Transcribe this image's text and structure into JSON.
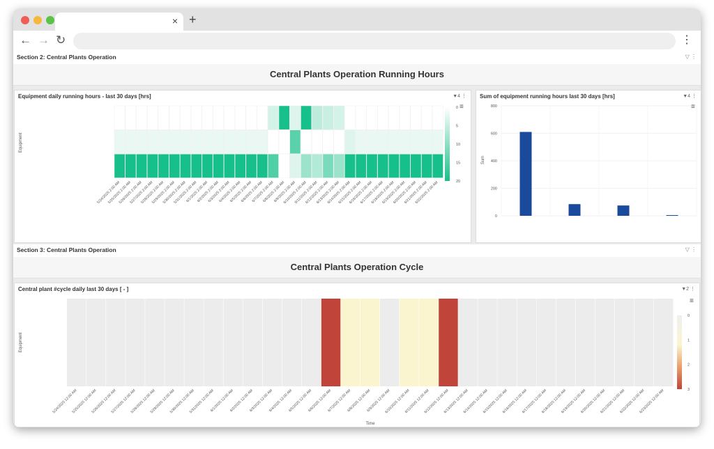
{
  "browser": {
    "tab_close": "×",
    "new_tab": "+",
    "back_icon": "←",
    "forward_icon": "→",
    "reload_icon": "↻",
    "menu_icon": "⋮"
  },
  "section2": {
    "title": "Section 2: Central Plants Operation",
    "banner": "Central Plants Operation Running Hours",
    "icons": "▽ ⋮"
  },
  "section3": {
    "title": "Section 3: Central Plants Operation",
    "banner": "Central Plants Operation Cycle",
    "icons": "▽ ⋮"
  },
  "panel_heatmap_hours": {
    "title": "Equipment daily running hours - last 30 days [hrs]",
    "filter_badge": "▼4 ⋮",
    "menu_icon": "≡",
    "ylabel": "Equipment"
  },
  "panel_bar_sum": {
    "title": "Sum of equipment running hours last 30 days [hrs]",
    "filter_badge": "▼4 ⋮",
    "menu_icon": "≡",
    "ylabel": "Sum"
  },
  "panel_cycle": {
    "title": "Central plant #cycle daily last 30 days [ - ]",
    "filter_badge": "▼2 ⋮",
    "menu_icon": "≡",
    "ylabel": "Equipment",
    "xlabel": "Time"
  },
  "colors": {
    "green_max": "#17c08a",
    "blue_bar": "#1a4a9c",
    "red_max": "#c0443a",
    "cream": "#fbf5cf",
    "gray_cell": "#ececec"
  },
  "chart_data": [
    {
      "type": "heatmap",
      "x": [
        "5/24/2025 2:00 AM",
        "5/25/2025 2:00 AM",
        "5/26/2025 2:00 AM",
        "5/27/2025 2:00 AM",
        "5/28/2025 2:00 AM",
        "5/29/2025 2:00 AM",
        "5/30/2025 2:00 AM",
        "5/31/2025 2:00 AM",
        "6/1/2025 2:00 AM",
        "6/2/2025 2:00 AM",
        "6/3/2025 2:00 AM",
        "6/4/2025 2:00 AM",
        "6/5/2025 2:00 AM",
        "6/6/2025 2:00 AM",
        "6/7/2025 2:00 AM",
        "6/8/2025 2:00 AM",
        "6/9/2025 2:00 AM",
        "6/10/2025 2:00 AM",
        "6/11/2025 2:00 AM",
        "6/12/2025 2:00 AM",
        "6/13/2025 2:00 AM",
        "6/14/2025 2:00 AM",
        "6/15/2025 2:00 AM",
        "6/16/2025 2:00 AM",
        "6/17/2025 2:00 AM",
        "6/18/2025 2:00 AM",
        "6/19/2025 2:00 AM",
        "6/20/2025 2:00 AM",
        "6/21/2025 2:00 AM",
        "6/22/2025 2:00 AM"
      ],
      "rows": 3,
      "values": [
        [
          0,
          0,
          0,
          0,
          0,
          0,
          0,
          0,
          0,
          0,
          0,
          0,
          0,
          0,
          3,
          20,
          2,
          20,
          5,
          4,
          3,
          0,
          0,
          0,
          0,
          0,
          0,
          0,
          0,
          0
        ],
        [
          1,
          1,
          1,
          1,
          1,
          1,
          1,
          1,
          1,
          1,
          1,
          1,
          1,
          1,
          0,
          0,
          14,
          0,
          0,
          0,
          0,
          2,
          1,
          1,
          1,
          1,
          1,
          1,
          1,
          1
        ],
        [
          20,
          20,
          20,
          20,
          20,
          20,
          20,
          20,
          20,
          20,
          20,
          20,
          20,
          20,
          15,
          0,
          2,
          8,
          6,
          11,
          8,
          20,
          20,
          20,
          20,
          20,
          20,
          20,
          20,
          20
        ]
      ],
      "colorbar": [
        0,
        5,
        10,
        15,
        20
      ],
      "ylabel": "Equipment"
    },
    {
      "type": "bar",
      "categories": [
        "",
        "",
        "",
        ""
      ],
      "values": [
        610,
        85,
        75,
        5
      ],
      "ylim": [
        0,
        800
      ],
      "yticks": [
        0,
        200,
        400,
        600,
        800
      ],
      "ylabel": "Sum"
    },
    {
      "type": "heatmap",
      "x": [
        "5/24/2025 12:00 AM",
        "5/25/2025 12:00 AM",
        "5/26/2025 12:00 AM",
        "5/27/2025 12:00 AM",
        "5/28/2025 12:00 AM",
        "5/29/2025 12:00 AM",
        "5/30/2025 12:00 AM",
        "5/31/2025 12:00 AM",
        "6/1/2025 12:00 AM",
        "6/2/2025 12:00 AM",
        "6/3/2025 12:00 AM",
        "6/4/2025 12:00 AM",
        "6/5/2025 12:00 AM",
        "6/6/2025 12:00 AM",
        "6/7/2025 12:00 AM",
        "6/8/2025 12:00 AM",
        "6/9/2025 12:00 AM",
        "6/10/2025 12:00 AM",
        "6/11/2025 12:00 AM",
        "6/12/2025 12:00 AM",
        "6/13/2025 12:00 AM",
        "6/14/2025 12:00 AM",
        "6/15/2025 12:00 AM",
        "6/16/2025 12:00 AM",
        "6/17/2025 12:00 AM",
        "6/18/2025 12:00 AM",
        "6/19/2025 12:00 AM",
        "6/20/2025 12:00 AM",
        "6/21/2025 12:00 AM",
        "6/22/2025 12:00 AM",
        "6/23/2025 12:00 AM"
      ],
      "rows": 1,
      "values": [
        [
          null,
          null,
          null,
          null,
          null,
          null,
          null,
          null,
          null,
          null,
          null,
          null,
          null,
          3,
          1,
          1,
          null,
          1,
          1,
          3,
          null,
          null,
          null,
          null,
          null,
          null,
          null,
          null,
          null,
          null,
          null
        ]
      ],
      "colorbar": [
        0,
        1,
        2,
        3
      ],
      "ylabel": "Equipment",
      "xlabel": "Time"
    }
  ]
}
